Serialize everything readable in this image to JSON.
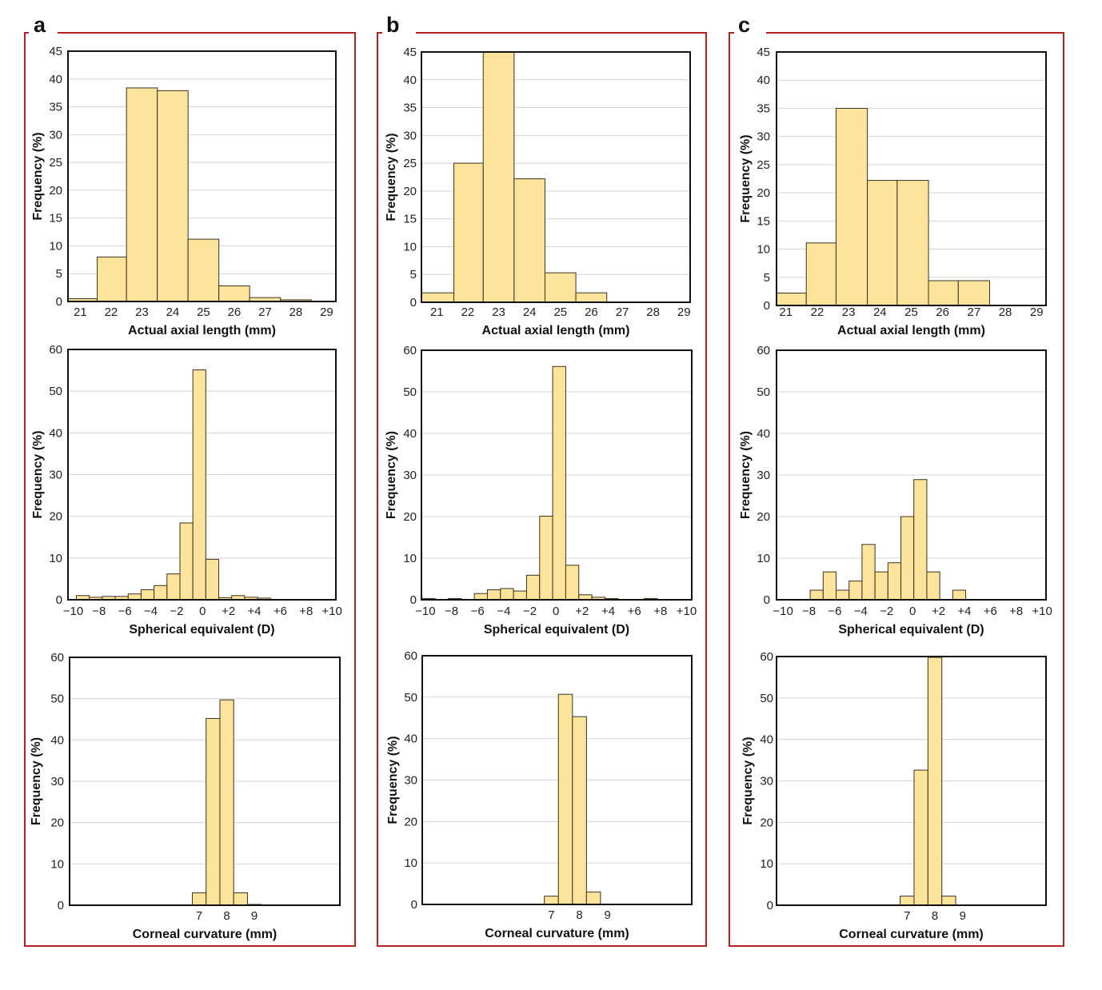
{
  "colors": {
    "bar_fill": "#fde49b",
    "bar_stroke": "#3a3222",
    "panel_border": "#b22222",
    "grid": "#d4d4d4",
    "frame": "#111111"
  },
  "panels": [
    {
      "letter": "a"
    },
    {
      "letter": "b"
    },
    {
      "letter": "c"
    }
  ],
  "chart_data": [
    {
      "id": "a-axial",
      "panel": "a",
      "type": "bar",
      "xlabel": "Actual axial length (mm)",
      "ylabel": "Frequency (%)",
      "xlim": [
        20.6,
        29.3
      ],
      "ylim": [
        0,
        45
      ],
      "xticks": [
        21,
        22,
        23,
        24,
        25,
        26,
        27,
        28,
        29
      ],
      "xtick_labels": [
        "21",
        "22",
        "23",
        "24",
        "25",
        "26",
        "27",
        "28",
        "29"
      ],
      "yticks": [
        0,
        5,
        10,
        15,
        20,
        25,
        30,
        35,
        40,
        45
      ],
      "ytick_labels": [
        "0",
        "5",
        "10",
        "15",
        "20",
        "25",
        "30",
        "35",
        "40",
        "45"
      ],
      "grid": true,
      "bins": [
        [
          20.6,
          21.55
        ],
        [
          21.55,
          22.5
        ],
        [
          22.5,
          23.5
        ],
        [
          23.5,
          24.5
        ],
        [
          24.5,
          25.5
        ],
        [
          25.5,
          26.5
        ],
        [
          26.5,
          27.5
        ],
        [
          27.5,
          28.5
        ],
        [
          28.5,
          29.3
        ]
      ],
      "values": [
        0.5,
        8,
        38.4,
        37.9,
        11.2,
        2.8,
        0.7,
        0.3,
        0
      ]
    },
    {
      "id": "a-se",
      "panel": "a",
      "type": "bar",
      "xlabel": "Spherical equivalent (D)",
      "ylabel": "Frequency (%)",
      "xlim": [
        -10.4,
        10.3
      ],
      "ylim": [
        0,
        60
      ],
      "xticks": [
        -10,
        -8,
        -6,
        -4,
        -2,
        0,
        2,
        4,
        6,
        8,
        10
      ],
      "xtick_labels": [
        "−10",
        "−8",
        "−6",
        "−4",
        "−2",
        "0",
        "+2",
        "+4",
        "+6",
        "+8",
        "+10"
      ],
      "yticks": [
        0,
        10,
        20,
        30,
        40,
        50,
        60
      ],
      "ytick_labels": [
        "0",
        "10",
        "20",
        "30",
        "40",
        "50",
        "60"
      ],
      "grid": true,
      "bin_start": -9.75,
      "bin_width": 1.0,
      "values": [
        1.0,
        0.6,
        0.8,
        0.8,
        1.4,
        2.4,
        3.4,
        6.2,
        18.4,
        55.1,
        9.7,
        0.5,
        1.0,
        0.6,
        0.4,
        0,
        0,
        0,
        0,
        0
      ]
    },
    {
      "id": "a-cc",
      "panel": "a",
      "type": "bar",
      "xlabel": "Corneal curvature (mm)",
      "ylabel": "Frequency (%)",
      "xlim": [
        2.3,
        12.1
      ],
      "ylim": [
        0,
        60
      ],
      "xticks": [
        7,
        8,
        9
      ],
      "xtick_labels": [
        "7",
        "8",
        "9"
      ],
      "yticks": [
        0,
        10,
        20,
        30,
        40,
        50,
        60
      ],
      "ytick_labels": [
        "0",
        "10",
        "20",
        "30",
        "40",
        "50",
        "60"
      ],
      "grid": true,
      "bin_start": 6.75,
      "bin_width": 0.5,
      "values": [
        3.0,
        45.2,
        49.7,
        3.0,
        0.2
      ]
    },
    {
      "id": "b-axial",
      "panel": "b",
      "type": "bar",
      "xlabel": "Actual axial length (mm)",
      "ylabel": "Frequency (%)",
      "xlim": [
        20.5,
        29.2
      ],
      "ylim": [
        0,
        45
      ],
      "xticks": [
        21,
        22,
        23,
        24,
        25,
        26,
        27,
        28,
        29
      ],
      "xtick_labels": [
        "21",
        "22",
        "23",
        "24",
        "25",
        "26",
        "27",
        "28",
        "29"
      ],
      "yticks": [
        0,
        5,
        10,
        15,
        20,
        25,
        30,
        35,
        40,
        45
      ],
      "ytick_labels": [
        "0",
        "5",
        "10",
        "15",
        "20",
        "25",
        "30",
        "35",
        "40",
        "45"
      ],
      "grid": true,
      "bins": [
        [
          20.5,
          21.55
        ],
        [
          21.55,
          22.5
        ],
        [
          22.5,
          23.5
        ],
        [
          23.5,
          24.5
        ],
        [
          24.5,
          25.5
        ],
        [
          25.5,
          26.5
        ],
        [
          26.5,
          27.5
        ],
        [
          27.5,
          28.5
        ],
        [
          28.5,
          29.2
        ]
      ],
      "values": [
        1.7,
        25,
        45.5,
        22.2,
        5.3,
        1.7,
        0,
        0,
        0
      ]
    },
    {
      "id": "b-se",
      "panel": "b",
      "type": "bar",
      "xlabel": "Spherical equivalent (D)",
      "ylabel": "Frequency (%)",
      "xlim": [
        -10.3,
        10.4
      ],
      "ylim": [
        0,
        60
      ],
      "xticks": [
        -10,
        -8,
        -6,
        -4,
        -2,
        0,
        2,
        4,
        6,
        8,
        10
      ],
      "xtick_labels": [
        "−10",
        "−8",
        "−6",
        "−4",
        "−2",
        "0",
        "+2",
        "+4",
        "+6",
        "+8",
        "+10"
      ],
      "yticks": [
        0,
        10,
        20,
        30,
        40,
        50,
        60
      ],
      "ytick_labels": [
        "0",
        "10",
        "20",
        "30",
        "40",
        "50",
        "60"
      ],
      "grid": true,
      "bin_start": -10.25,
      "bin_width": 1.0,
      "values": [
        0.3,
        0,
        0.3,
        0,
        1.5,
        2.4,
        2.7,
        2.1,
        5.9,
        20.1,
        56.1,
        8.3,
        1.2,
        0.6,
        0.3,
        0,
        0,
        0.3,
        0,
        0
      ]
    },
    {
      "id": "b-cc",
      "panel": "b",
      "type": "bar",
      "xlabel": "Corneal curvature (mm)",
      "ylabel": "Frequency (%)",
      "xlim": [
        2.4,
        12.0
      ],
      "ylim": [
        0,
        60
      ],
      "xticks": [
        7,
        8,
        9
      ],
      "xtick_labels": [
        "7",
        "8",
        "9"
      ],
      "yticks": [
        0,
        10,
        20,
        30,
        40,
        50,
        60
      ],
      "ytick_labels": [
        "0",
        "10",
        "20",
        "30",
        "40",
        "50",
        "60"
      ],
      "grid": true,
      "bin_start": 6.75,
      "bin_width": 0.5,
      "values": [
        2.0,
        50.7,
        45.3,
        3.0
      ]
    },
    {
      "id": "c-axial",
      "panel": "c",
      "type": "bar",
      "xlabel": "Actual axial length (mm)",
      "ylabel": "Frequency (%)",
      "xlim": [
        20.7,
        29.3
      ],
      "ylim": [
        0,
        45
      ],
      "xticks": [
        21,
        22,
        23,
        24,
        25,
        26,
        27,
        28,
        29
      ],
      "xtick_labels": [
        "21",
        "22",
        "23",
        "24",
        "25",
        "26",
        "27",
        "28",
        "29"
      ],
      "yticks": [
        0,
        5,
        10,
        15,
        20,
        25,
        30,
        35,
        40,
        45
      ],
      "ytick_labels": [
        "0",
        "5",
        "10",
        "15",
        "20",
        "25",
        "30",
        "35",
        "40",
        "45"
      ],
      "grid": true,
      "bins": [
        [
          20.7,
          21.65
        ],
        [
          21.65,
          22.6
        ],
        [
          22.6,
          23.6
        ],
        [
          23.6,
          24.55
        ],
        [
          24.55,
          25.55
        ],
        [
          25.55,
          26.5
        ],
        [
          26.5,
          27.5
        ],
        [
          27.5,
          28.5
        ],
        [
          28.5,
          29.3
        ]
      ],
      "values": [
        2.2,
        11.1,
        35,
        22.2,
        22.2,
        4.4,
        4.4,
        0,
        0
      ]
    },
    {
      "id": "c-se",
      "panel": "c",
      "type": "bar",
      "xlabel": "Spherical equivalent (D)",
      "ylabel": "Frequency (%)",
      "xlim": [
        -10.5,
        10.3
      ],
      "ylim": [
        0,
        60
      ],
      "xticks": [
        -10,
        -8,
        -6,
        -4,
        -2,
        0,
        2,
        4,
        6,
        8,
        10
      ],
      "xtick_labels": [
        "−10",
        "−8",
        "−6",
        "−4",
        "−2",
        "0",
        "+2",
        "+4",
        "+6",
        "+8",
        "+10"
      ],
      "yticks": [
        0,
        10,
        20,
        30,
        40,
        50,
        60
      ],
      "ytick_labels": [
        "0",
        "10",
        "20",
        "30",
        "40",
        "50",
        "60"
      ],
      "grid": true,
      "bin_start": -9.9,
      "bin_width": 1.0,
      "values": [
        0,
        0,
        2.3,
        6.7,
        2.3,
        4.5,
        13.3,
        6.7,
        8.9,
        20.0,
        28.9,
        6.7,
        0,
        2.3,
        0,
        0,
        0,
        0,
        0,
        0
      ]
    },
    {
      "id": "c-cc",
      "panel": "c",
      "type": "bar",
      "xlabel": "Corneal curvature (mm)",
      "ylabel": "Frequency (%)",
      "xlim": [
        2.3,
        12.0
      ],
      "ylim": [
        0,
        60
      ],
      "xticks": [
        7,
        8,
        9
      ],
      "xtick_labels": [
        "7",
        "8",
        "9"
      ],
      "yticks": [
        0,
        10,
        20,
        30,
        40,
        50,
        60
      ],
      "ytick_labels": [
        "0",
        "10",
        "20",
        "30",
        "40",
        "50",
        "60"
      ],
      "grid": true,
      "bin_start": 6.75,
      "bin_width": 0.5,
      "values": [
        2.2,
        32.6,
        59.8,
        2.2
      ]
    }
  ]
}
